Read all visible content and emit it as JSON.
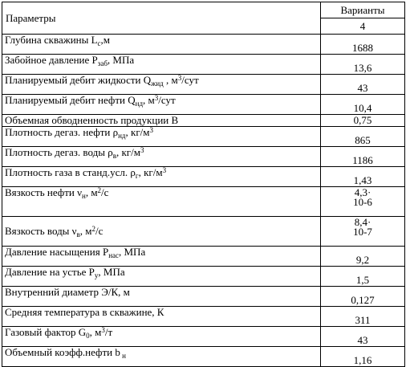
{
  "header": {
    "params": "Параметры",
    "variants": "Варианты",
    "variant_no": "4"
  },
  "rows": [
    {
      "label": "Глубина скважины L",
      "sub": "с",
      "tail": ",м",
      "value": "1688"
    },
    {
      "label": "Забойное давление P",
      "sub": "заб",
      "tail": ", МПа",
      "value": "13,6"
    },
    {
      "label": "Планируемый дебит жидкости Q",
      "sub": "жид",
      "tail": " , м",
      "sup": "3",
      "tail2": "/сут",
      "value": "43"
    },
    {
      "label": "Планируемый дебит нефти Q",
      "sub": "нд",
      "tail": ", м",
      "sup": "3",
      "tail2": "/сут",
      "value": "10,4"
    },
    {
      "label": "Объемная обводненность продукции В",
      "value": "0,75"
    },
    {
      "label": "Плотность дегаз. нефти ρ",
      "sub": "нд",
      "tail": ", кг/м",
      "sup": "3",
      "value": "865"
    },
    {
      "label": "Плотность дегаз. воды ρ",
      "sub": "в",
      "tail": ", кг/м",
      "sup": "3",
      "value": "1186"
    },
    {
      "label": "Плотность газа в станд.усл. ρ",
      "sub": "г",
      "tail": ", кг/м",
      "sup": "3",
      "value": "1,43"
    },
    {
      "label": "Вязкость нефти ν",
      "sub": "н",
      "tail": ", м",
      "sup": "2",
      "tail2": "/с",
      "value_a": "4,3·",
      "value_b": "10-6"
    },
    {
      "label": "Вязкость воды ν",
      "sub": "в",
      "tail": ", м",
      "sup": "2",
      "tail2": "/с",
      "value_a": "8,4·",
      "value_b": "10-7"
    },
    {
      "label": "Давление насыщения P",
      "sub": "нас",
      "tail": ", МПа",
      "value": "9,2"
    },
    {
      "label": "Давление на устье P",
      "sub": "у",
      "tail": ", МПа",
      "value": "1,5"
    },
    {
      "label": "Внутренний диаметр Э/К, м",
      "value": "0,127"
    },
    {
      "label": "Средняя температура в скважине, К",
      "value": "311"
    },
    {
      "label": "Газовый фактор G",
      "sub": "0",
      "tail": ", м",
      "sup": "3",
      "tail2": "/т",
      "value": "43"
    },
    {
      "label": "Объемный коэфф.нефти b",
      "sub": " н",
      "value": "1,16"
    }
  ]
}
